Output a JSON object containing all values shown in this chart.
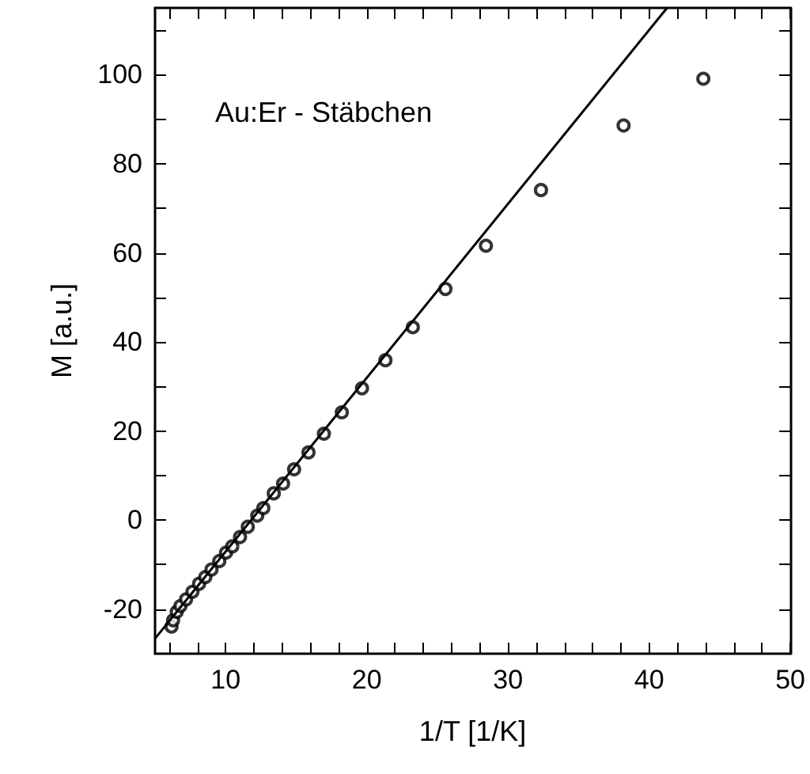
{
  "chart_data": {
    "type": "scatter",
    "xlabel": "1/T [1/K]",
    "ylabel": "M [a.u.]",
    "annotations": [
      "Au:Er - Stäbchen"
    ],
    "marker": "circle",
    "grid": false,
    "xlim": [
      5,
      50
    ],
    "ylim": [
      -30,
      115
    ],
    "xticks": [
      {
        "value": 6,
        "label": null
      },
      {
        "value": 8,
        "label": null
      },
      10,
      {
        "value": 12,
        "label": null
      },
      {
        "value": 14,
        "label": null
      },
      {
        "value": 16,
        "label": null
      },
      {
        "value": 18,
        "label": null
      },
      20,
      {
        "value": 22,
        "label": null
      },
      {
        "value": 24,
        "label": null
      },
      {
        "value": 26,
        "label": null
      },
      {
        "value": 28,
        "label": null
      },
      30,
      {
        "value": 32,
        "label": null
      },
      {
        "value": 34,
        "label": null
      },
      {
        "value": 36,
        "label": null
      },
      {
        "value": 38,
        "label": null
      },
      40,
      {
        "value": 42,
        "label": null
      },
      {
        "value": 44,
        "label": null
      },
      {
        "value": 46,
        "label": null
      },
      {
        "value": 48,
        "label": null
      },
      50
    ],
    "yticks": [
      -20,
      {
        "value": -10,
        "label": null
      },
      0,
      {
        "value": 10,
        "label": null
      },
      20,
      {
        "value": 30,
        "label": null
      },
      40,
      {
        "value": 50,
        "label": null
      },
      60,
      {
        "value": 70,
        "label": null
      },
      80,
      {
        "value": 90,
        "label": null
      },
      100,
      {
        "value": 110,
        "label": null
      }
    ],
    "series": [
      {
        "color": "#000000",
        "x": [
          6.17,
          6.28,
          6.54,
          6.8,
          7.2,
          7.65,
          8.12,
          8.56,
          9.0,
          9.55,
          10.03,
          10.47,
          11.02,
          11.57,
          12.24,
          12.67,
          13.41,
          14.07,
          14.85,
          15.87,
          16.96,
          18.23,
          19.66,
          21.32,
          23.26,
          25.57,
          28.44,
          32.34,
          38.19,
          43.84
        ],
        "values": [
          -23.9,
          -22.5,
          -20.6,
          -19.3,
          -17.8,
          -16.1,
          -14.3,
          -12.8,
          -11.1,
          -9.2,
          -7.3,
          -5.9,
          -3.8,
          -1.5,
          1.0,
          2.7,
          6.0,
          8.2,
          11.4,
          15.2,
          19.4,
          24.2,
          29.6,
          35.9,
          43.3,
          51.9,
          61.6,
          74.1,
          88.6,
          99.1
        ]
      },
      {
        "type": "line",
        "color": "#000000",
        "marker": "none",
        "line_style": "solid",
        "x": [
          5,
          41.27
        ],
        "values": [
          -26.6,
          115
        ]
      }
    ]
  }
}
